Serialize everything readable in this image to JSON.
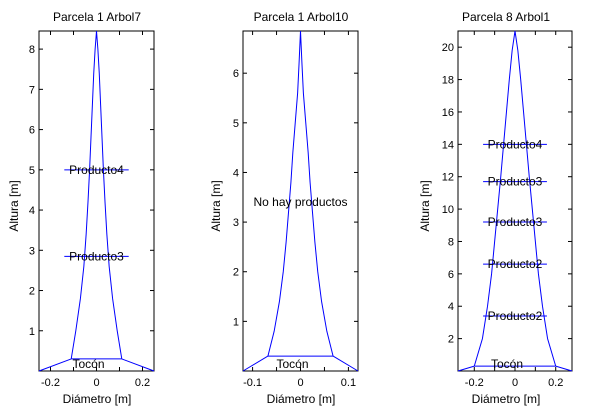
{
  "colors": {
    "profile": "#0000ff",
    "axes": "#000000",
    "background": "#ffffff"
  },
  "chart_data": [
    {
      "type": "line",
      "title": "Parcela 1 Arbol7",
      "xlabel": "Diámetro [m]",
      "ylabel": "Altura [m]",
      "xlim": [
        -0.25,
        0.25
      ],
      "ylim": [
        0,
        8.45
      ],
      "xticks": [
        -0.2,
        -0.1,
        0,
        0.1,
        0.2
      ],
      "xtick_labels": [
        "-0.2",
        "",
        "0",
        "",
        "0.2"
      ],
      "yticks": [
        1,
        2,
        3,
        4,
        5,
        6,
        7,
        8
      ],
      "ytick_labels": [
        "1",
        "2",
        "3",
        "4",
        "5",
        "6",
        "7",
        "8"
      ],
      "grid": false,
      "profile": {
        "x": [
          0.11,
          0.09,
          0.07,
          0.055,
          0.045,
          0.037,
          0.03,
          0.024,
          0.018,
          0.012,
          0.006,
          0
        ],
        "y": [
          0.3,
          1,
          1.8,
          2.6,
          3.4,
          4.2,
          5,
          5.8,
          6.6,
          7.4,
          8.0,
          8.45
        ]
      },
      "stump": {
        "label": "Tocón",
        "height": 0.3,
        "x_start": -0.25,
        "x_end": 0.25
      },
      "products": [
        {
          "label": "Producto4",
          "height": 5.0
        },
        {
          "label": "Producto3",
          "height": 2.85
        }
      ]
    },
    {
      "type": "line",
      "title": "Parcela 1 Arbol10",
      "xlabel": "Diámetro [m]",
      "ylabel": "Altura [m]",
      "xlim": [
        -0.12,
        0.12
      ],
      "ylim": [
        0,
        6.85
      ],
      "xticks": [
        -0.1,
        -0.05,
        0,
        0.05,
        0.1
      ],
      "xtick_labels": [
        "-0.1",
        "",
        "0",
        "",
        "0.1"
      ],
      "yticks": [
        1,
        2,
        3,
        4,
        5,
        6
      ],
      "ytick_labels": [
        "1",
        "2",
        "3",
        "4",
        "5",
        "6"
      ],
      "grid": false,
      "profile": {
        "x": [
          0.068,
          0.055,
          0.044,
          0.036,
          0.03,
          0.025,
          0.02,
          0.016,
          0.011,
          0.006,
          0.003,
          0
        ],
        "y": [
          0.3,
          0.8,
          1.4,
          2.0,
          2.6,
          3.2,
          3.8,
          4.4,
          5.0,
          5.6,
          6.2,
          6.85
        ]
      },
      "stump": {
        "label": "Tocón",
        "height": 0.3,
        "x_start": -0.12,
        "x_end": 0.12
      },
      "annotation": {
        "label": "No hay productos",
        "height": 3.4
      }
    },
    {
      "type": "line",
      "title": "Parcela 8 Arbol1",
      "xlabel": "Diámetro [m]",
      "ylabel": "Altura [m]",
      "xlim": [
        -0.28,
        0.28
      ],
      "ylim": [
        0,
        21
      ],
      "xticks": [
        -0.2,
        -0.1,
        0,
        0.1,
        0.2
      ],
      "xtick_labels": [
        "-0.2",
        "",
        "0",
        "",
        "0.2"
      ],
      "yticks": [
        2,
        4,
        6,
        8,
        10,
        12,
        14,
        16,
        18,
        20
      ],
      "ytick_labels": [
        "2",
        "4",
        "6",
        "8",
        "10",
        "12",
        "14",
        "16",
        "18",
        "20"
      ],
      "grid": false,
      "profile": {
        "x": [
          0.2,
          0.16,
          0.135,
          0.115,
          0.1,
          0.085,
          0.07,
          0.056,
          0.042,
          0.028,
          0.014,
          0
        ],
        "y": [
          0.3,
          2,
          4,
          6,
          8,
          10,
          12,
          14,
          16,
          18,
          19.8,
          21
        ]
      },
      "stump": {
        "label": "Tocón",
        "height": 0.3,
        "x_start": -0.28,
        "x_end": 0.28
      },
      "products": [
        {
          "label": "Producto4",
          "height": 14.0
        },
        {
          "label": "Producto3",
          "height": 11.7
        },
        {
          "label": "Producto3",
          "height": 9.2
        },
        {
          "label": "Producto2",
          "height": 6.6
        },
        {
          "label": "Producto2",
          "height": 3.4
        }
      ]
    }
  ]
}
